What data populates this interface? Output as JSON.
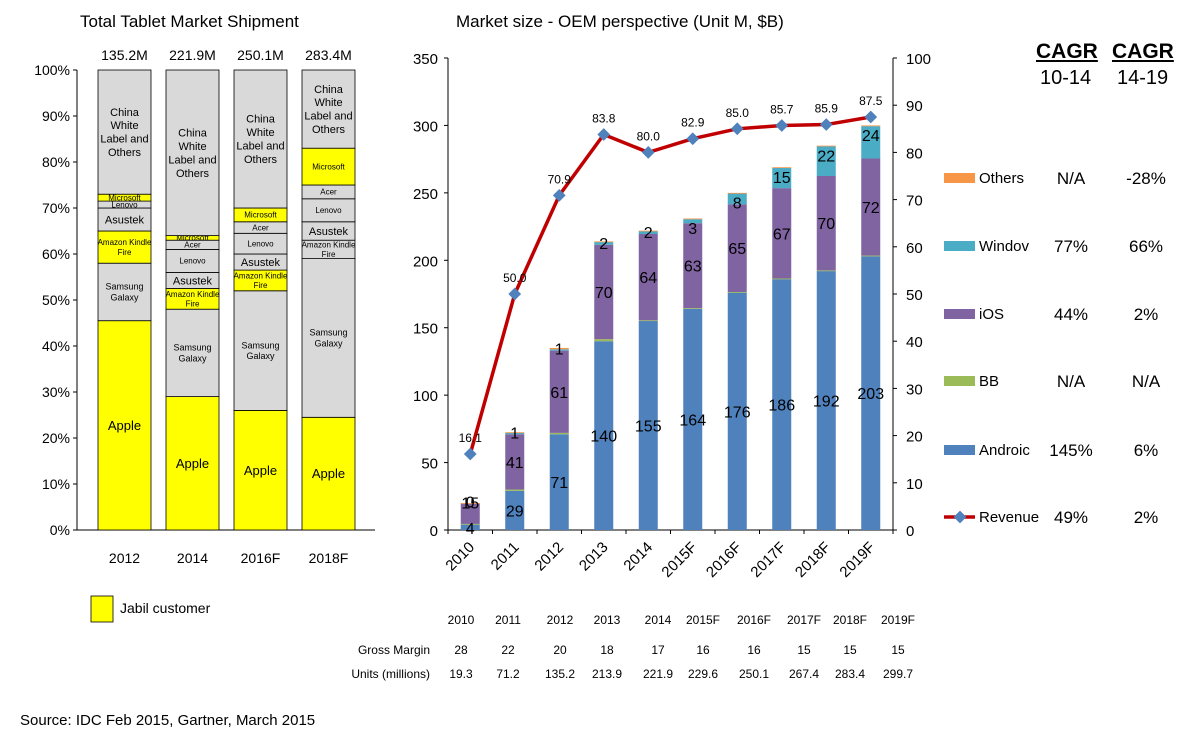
{
  "source": "Source: IDC Feb 2015, Gartner, March 2015",
  "chart_data": [
    {
      "type": "bar",
      "stacked": "percent",
      "title": "Total  Tablet Market Shipment",
      "categories": [
        "2012",
        "2014",
        "2016F",
        "2018F"
      ],
      "totals": [
        "135.2M",
        "221.9M",
        "250.1M",
        "283.4M"
      ],
      "ylim": [
        0,
        100
      ],
      "yticks": [
        "0%",
        "10%",
        "20%",
        "30%",
        "40%",
        "50%",
        "60%",
        "70%",
        "80%",
        "90%",
        "100%"
      ],
      "legend": [
        {
          "label": "Jabil customer",
          "color": "#ffff00"
        }
      ],
      "colors": {
        "jabil": "#ffff00",
        "other": "#d9d9d9"
      },
      "bars": [
        {
          "category": "2012",
          "segments": [
            {
              "label": "Apple",
              "value": 45.5,
              "jabil": true
            },
            {
              "label": "Samsung Galaxy",
              "value": 12.5,
              "jabil": false
            },
            {
              "label": "Amazon Kindle Fire",
              "value": 7,
              "jabil": true
            },
            {
              "label": "Asustek",
              "value": 5,
              "jabil": false
            },
            {
              "label": "Lenovo",
              "value": 1.5,
              "jabil": false
            },
            {
              "label": "Microsoft",
              "value": 1.5,
              "jabil": true
            },
            {
              "label": "China White Label and Others",
              "value": 27,
              "jabil": false
            }
          ]
        },
        {
          "category": "2014",
          "segments": [
            {
              "label": "Apple",
              "value": 29,
              "jabil": true
            },
            {
              "label": "Samsung Galaxy",
              "value": 19,
              "jabil": false
            },
            {
              "label": "Amazon Kindle Fire",
              "value": 4.5,
              "jabil": true
            },
            {
              "label": "Asustek",
              "value": 3.5,
              "jabil": false
            },
            {
              "label": "Lenovo",
              "value": 5,
              "jabil": false
            },
            {
              "label": "Acer",
              "value": 2,
              "jabil": false
            },
            {
              "label": "Microsoft",
              "value": 1,
              "jabil": true
            },
            {
              "label": "China White Label and Others",
              "value": 36,
              "jabil": false
            }
          ]
        },
        {
          "category": "2016F",
          "segments": [
            {
              "label": "Apple",
              "value": 26,
              "jabil": true
            },
            {
              "label": "Samsung Galaxy",
              "value": 26,
              "jabil": false
            },
            {
              "label": "Amazon Kindle Fire",
              "value": 4.5,
              "jabil": true
            },
            {
              "label": "Asustek",
              "value": 3.5,
              "jabil": false
            },
            {
              "label": "Lenovo",
              "value": 4.5,
              "jabil": false
            },
            {
              "label": "Acer",
              "value": 2.5,
              "jabil": false
            },
            {
              "label": "Microsoft",
              "value": 3,
              "jabil": true
            },
            {
              "label": "China White Label and Others",
              "value": 30,
              "jabil": false
            }
          ]
        },
        {
          "category": "2018F",
          "segments": [
            {
              "label": "Apple",
              "value": 24.5,
              "jabil": true
            },
            {
              "label": "Samsung Galaxy",
              "value": 34.5,
              "jabil": false
            },
            {
              "label": "Amazon Kindle Fire",
              "value": 4,
              "jabil": false
            },
            {
              "label": "Asustek",
              "value": 4,
              "jabil": false
            },
            {
              "label": "Lenovo",
              "value": 5,
              "jabil": false
            },
            {
              "label": "Acer",
              "value": 3,
              "jabil": false
            },
            {
              "label": "Microsoft",
              "value": 8,
              "jabil": true
            },
            {
              "label": "China White Label and Others",
              "value": 17,
              "jabil": false
            }
          ]
        }
      ]
    },
    {
      "type": "bar",
      "stacked": true,
      "title": "Market size - OEM perspective (Unit M, $B)",
      "categories": [
        "2010",
        "2011",
        "2012",
        "2013",
        "2014",
        "2015F",
        "2016F",
        "2017F",
        "2018F",
        "2019F"
      ],
      "ylim": [
        0,
        350
      ],
      "yticks": [
        0,
        50,
        100,
        150,
        200,
        250,
        300,
        350
      ],
      "y2lim": [
        0,
        100
      ],
      "y2ticks": [
        0,
        10,
        20,
        30,
        40,
        50,
        60,
        70,
        80,
        90,
        100
      ],
      "series": [
        {
          "name": "Android",
          "color": "#4f81bd",
          "values": [
            4,
            29,
            71,
            140,
            155,
            164,
            176,
            186,
            192,
            203
          ],
          "labels": [
            "4",
            "29",
            "71",
            "140",
            "155",
            "164",
            "176",
            "186",
            "192",
            "203"
          ]
        },
        {
          "name": "BB",
          "color": "#9bbb59",
          "values": [
            0.5,
            1,
            1,
            1.5,
            0.5,
            0.5,
            0.5,
            0.5,
            0.5,
            0.5
          ],
          "labels": []
        },
        {
          "name": "iOS",
          "color": "#8064a2",
          "values": [
            15,
            41,
            61,
            70,
            64,
            63,
            65,
            67,
            70,
            72
          ],
          "labels": [
            "15",
            "41",
            "61",
            "70",
            "64",
            "63",
            "65",
            "67",
            "70",
            "72"
          ]
        },
        {
          "name": "Windows",
          "color": "#4bacc6",
          "values": [
            0,
            1,
            1,
            2,
            2,
            3,
            8,
            15,
            22,
            24
          ],
          "labels": [
            "0",
            "1",
            "1",
            "2",
            "2",
            "3",
            "8",
            "15",
            "22",
            "24"
          ]
        },
        {
          "name": "Others",
          "color": "#f79646",
          "values": [
            0.5,
            0.5,
            1,
            0.5,
            0.5,
            0.5,
            0.5,
            0.5,
            0.5,
            0.5
          ],
          "labels": []
        }
      ],
      "line": {
        "name": "Revenue",
        "color": "#c00000",
        "marker_color": "#4f81bd",
        "axis": "secondary",
        "values": [
          16.1,
          50.0,
          70.9,
          83.8,
          80.0,
          82.9,
          85.0,
          85.7,
          85.9,
          87.5
        ],
        "labels": [
          "16.1",
          "50.0",
          "70.9",
          "83.8",
          "80.0",
          "82.9",
          "85.0",
          "85.7",
          "85.9",
          "87.5"
        ]
      },
      "legend": [
        {
          "label": "Others",
          "color": "#f79646"
        },
        {
          "label": "Windov",
          "color": "#4bacc6"
        },
        {
          "label": "iOS",
          "color": "#8064a2"
        },
        {
          "label": "BB",
          "color": "#9bbb59"
        },
        {
          "label": "Androic",
          "color": "#4f81bd"
        },
        {
          "label": "Revenue",
          "color": "#c00000",
          "line": true
        }
      ],
      "cagr": {
        "headers": [
          "CAGR",
          "CAGR"
        ],
        "subheaders": [
          "10-14",
          "14-19"
        ],
        "rows": [
          [
            "N/A",
            "-28%"
          ],
          [
            "77%",
            "66%"
          ],
          [
            "44%",
            "2%"
          ],
          [
            "N/A",
            "N/A"
          ],
          [
            "145%",
            "6%"
          ],
          [
            "49%",
            "2%"
          ]
        ]
      },
      "table": {
        "years": [
          "2010",
          "2011",
          "2012",
          "2013",
          "2014",
          "2015F",
          "2016F",
          "2017F",
          "2018F",
          "2019F"
        ],
        "rows": [
          {
            "label": "Gross Margin",
            "values": [
              "28",
              "22",
              "20",
              "18",
              "17",
              "16",
              "16",
              "15",
              "15",
              "15"
            ]
          },
          {
            "label": "Units (millions)",
            "values": [
              "19.3",
              "71.2",
              "135.2",
              "213.9",
              "221.9",
              "229.6",
              "250.1",
              "267.4",
              "283.4",
              "299.7"
            ]
          }
        ]
      }
    }
  ]
}
